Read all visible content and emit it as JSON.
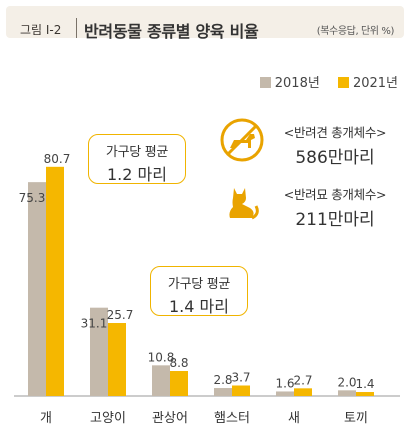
{
  "header": {
    "figure_label": "그림 Ⅰ-2",
    "title": "반려동물 종류별 양육 비율",
    "note": "(복수응답, 단위 %)"
  },
  "legend": [
    {
      "label": "2018년",
      "color": "#c4b9ab"
    },
    {
      "label": "2021년",
      "color": "#f5b700"
    }
  ],
  "callouts": [
    {
      "line1": "가구당 평균",
      "line2": "1.2 마리"
    },
    {
      "line1": "가구당 평균",
      "line2": "1.4 마리"
    }
  ],
  "totals": [
    {
      "icon": "dog-icon",
      "line1": "<반려견 총개체수>",
      "line2": "586만마리"
    },
    {
      "icon": "cat-icon",
      "line1": "<반려묘 총개체수>",
      "line2": "211만마리"
    }
  ],
  "colors": {
    "accent": "#f5b700",
    "secondary": "#c4b9ab",
    "icon": "#e9a300"
  },
  "chart_data": {
    "type": "bar",
    "categories": [
      "개",
      "고양이",
      "관상어",
      "햄스터",
      "새",
      "토끼"
    ],
    "series": [
      {
        "name": "2018년",
        "values": [
          75.3,
          31.1,
          10.8,
          2.8,
          1.6,
          2.0
        ]
      },
      {
        "name": "2021년",
        "values": [
          80.7,
          25.7,
          8.8,
          3.7,
          2.7,
          1.4
        ]
      }
    ],
    "legend_position": "top-right",
    "grid": false
  }
}
